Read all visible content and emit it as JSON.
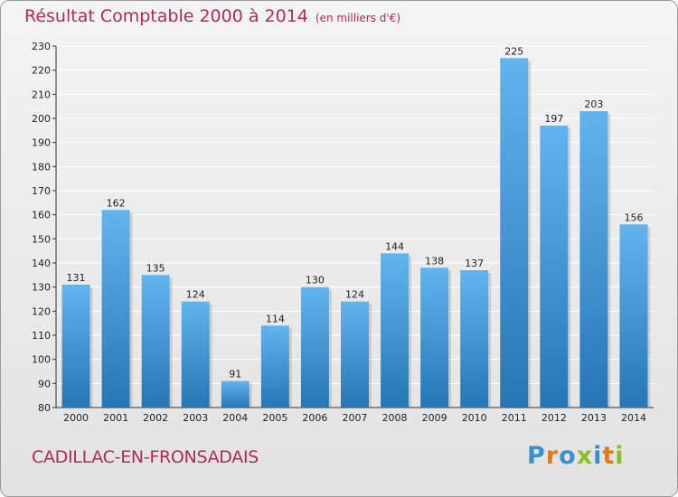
{
  "header": {
    "title": "Résultat Comptable 2000 à 2014",
    "subtitle": "(en milliers d'€)"
  },
  "footer": {
    "commune": "CADILLAC-EN-FRONSADAIS",
    "logo": "Proxiti"
  },
  "colors": {
    "title": "#b22a55",
    "bar_top": "#62b4ee",
    "bar_bottom": "#2676b6",
    "grid": "#ffffff",
    "logo_letters": [
      "#3a8fd0",
      "#e07a1a",
      "#3a8fd0",
      "#8bbf2a",
      "#3a8fd0",
      "#e07a1a",
      "#8bbf2a"
    ]
  },
  "chart_data": {
    "type": "bar",
    "title": "Résultat Comptable 2000 à 2014",
    "subtitle": "(en milliers d'€)",
    "categories": [
      "2000",
      "2001",
      "2002",
      "2003",
      "2004",
      "2005",
      "2006",
      "2007",
      "2008",
      "2009",
      "2010",
      "2011",
      "2012",
      "2013",
      "2014"
    ],
    "values": [
      131,
      162,
      135,
      124,
      91,
      114,
      130,
      124,
      144,
      138,
      137,
      225,
      197,
      203,
      156
    ],
    "ylim": [
      80,
      230
    ],
    "yticks": [
      80,
      90,
      100,
      110,
      120,
      130,
      140,
      150,
      160,
      170,
      180,
      190,
      200,
      210,
      220,
      230
    ],
    "grid": true,
    "data_labels": true
  }
}
